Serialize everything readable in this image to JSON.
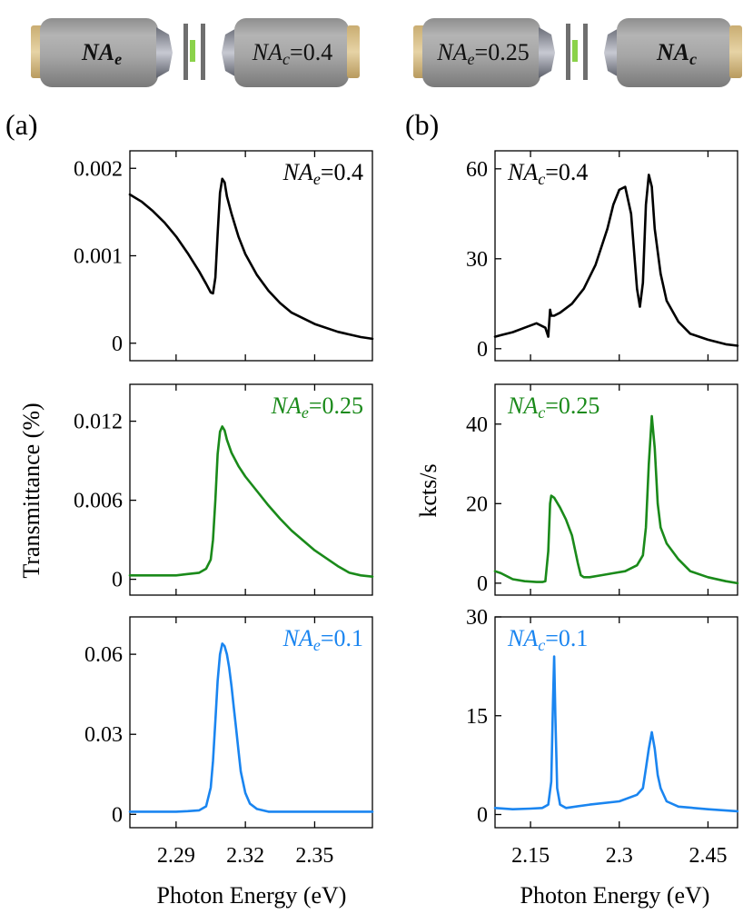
{
  "figure": {
    "panel_a_label": "(a)",
    "panel_b_label": "(b)",
    "shared_xlabel": "Photon Energy (eV)",
    "left_ylabel": "Transmittance (%)",
    "right_ylabel": "kcts/s"
  },
  "illustrations": {
    "a": {
      "left_lens": {
        "sym": "NA",
        "sub": "e",
        "rest": ""
      },
      "right_lens": {
        "sym": "NA",
        "sub": "c",
        "rest": "=0.4"
      }
    },
    "b": {
      "left_lens": {
        "sym": "NA",
        "sub": "e",
        "rest": "=0.25"
      },
      "right_lens": {
        "sym": "NA",
        "sub": "c",
        "rest": ""
      }
    }
  },
  "colors": {
    "black": "#000000",
    "green": "#1a8a1a",
    "blue": "#1a85f0",
    "lens_body": "#a9a9a9",
    "lens_cap": "#d8c08a",
    "sample": "#8bd24a"
  },
  "chart_data": [
    {
      "type": "line",
      "panel": "a",
      "row": 0,
      "annotation": {
        "sym": "NA",
        "sub": "e",
        "rest": "=0.4"
      },
      "xlim": [
        2.27,
        2.375
      ],
      "ylim": [
        -0.0002,
        0.0022
      ],
      "xticks": [
        2.29,
        2.32,
        2.35
      ],
      "xticklabels": [
        "",
        "",
        ""
      ],
      "yticks": [
        0,
        0.001,
        0.002
      ],
      "yticklabels": [
        "0",
        "0.001",
        "0.002"
      ],
      "series": [
        {
          "color": "black",
          "x": [
            2.27,
            2.275,
            2.28,
            2.285,
            2.29,
            2.295,
            2.3,
            2.303,
            2.305,
            2.306,
            2.307,
            2.308,
            2.309,
            2.31,
            2.311,
            2.312,
            2.314,
            2.317,
            2.32,
            2.325,
            2.33,
            2.335,
            2.34,
            2.35,
            2.36,
            2.37,
            2.375
          ],
          "y": [
            0.0017,
            0.00162,
            0.00151,
            0.00138,
            0.00122,
            0.00103,
            0.00082,
            0.00068,
            0.00058,
            0.00057,
            0.00075,
            0.00125,
            0.00172,
            0.00188,
            0.00184,
            0.00168,
            0.00148,
            0.00122,
            0.00102,
            0.00078,
            0.0006,
            0.00046,
            0.00035,
            0.00022,
            0.00013,
            7e-05,
            5e-05
          ]
        }
      ]
    },
    {
      "type": "line",
      "panel": "a",
      "row": 1,
      "annotation": {
        "sym": "NA",
        "sub": "e",
        "rest": "=0.25"
      },
      "xlim": [
        2.27,
        2.375
      ],
      "ylim": [
        -0.0012,
        0.0148
      ],
      "xticks": [
        2.29,
        2.32,
        2.35
      ],
      "xticklabels": [
        "",
        "",
        ""
      ],
      "yticks": [
        0,
        0.006,
        0.012
      ],
      "yticklabels": [
        "0",
        "0.006",
        "0.012"
      ],
      "series": [
        {
          "color": "green",
          "x": [
            2.27,
            2.28,
            2.29,
            2.295,
            2.3,
            2.303,
            2.305,
            2.306,
            2.307,
            2.308,
            2.309,
            2.31,
            2.311,
            2.312,
            2.314,
            2.317,
            2.32,
            2.325,
            2.33,
            2.335,
            2.34,
            2.35,
            2.36,
            2.365,
            2.37,
            2.375
          ],
          "y": [
            0.0003,
            0.0003,
            0.0003,
            0.0004,
            0.0005,
            0.0008,
            0.0015,
            0.003,
            0.006,
            0.0095,
            0.0112,
            0.0116,
            0.0113,
            0.0106,
            0.0096,
            0.0086,
            0.0078,
            0.0067,
            0.0056,
            0.0046,
            0.0037,
            0.0022,
            0.001,
            0.0005,
            0.0003,
            0.0002
          ]
        }
      ]
    },
    {
      "type": "line",
      "panel": "a",
      "row": 2,
      "annotation": {
        "sym": "NA",
        "sub": "e",
        "rest": "=0.1"
      },
      "xlim": [
        2.27,
        2.375
      ],
      "ylim": [
        -0.005,
        0.074
      ],
      "xticks": [
        2.29,
        2.32,
        2.35
      ],
      "xticklabels": [
        "2.29",
        "2.32",
        "2.35"
      ],
      "yticks": [
        0,
        0.03,
        0.06
      ],
      "yticklabels": [
        "0",
        "0.03",
        "0.06"
      ],
      "series": [
        {
          "color": "blue",
          "x": [
            2.27,
            2.28,
            2.29,
            2.295,
            2.3,
            2.303,
            2.305,
            2.306,
            2.307,
            2.308,
            2.309,
            2.31,
            2.311,
            2.312,
            2.313,
            2.314,
            2.315,
            2.316,
            2.317,
            2.318,
            2.32,
            2.322,
            2.325,
            2.33,
            2.34,
            2.35,
            2.36,
            2.375
          ],
          "y": [
            0.001,
            0.001,
            0.001,
            0.0012,
            0.0015,
            0.003,
            0.01,
            0.02,
            0.035,
            0.05,
            0.06,
            0.064,
            0.063,
            0.06,
            0.055,
            0.048,
            0.04,
            0.032,
            0.024,
            0.016,
            0.008,
            0.004,
            0.002,
            0.001,
            0.001,
            0.001,
            0.001,
            0.001
          ]
        }
      ]
    },
    {
      "type": "line",
      "panel": "b",
      "row": 0,
      "annotation": {
        "sym": "NA",
        "sub": "c",
        "rest": "=0.4"
      },
      "xlim": [
        2.09,
        2.5
      ],
      "ylim": [
        -4,
        66
      ],
      "xticks": [
        2.15,
        2.3,
        2.45
      ],
      "xticklabels": [
        "",
        "",
        ""
      ],
      "yticks": [
        0,
        30,
        60
      ],
      "yticklabels": [
        "0",
        "30",
        "60"
      ],
      "series": [
        {
          "color": "black",
          "x": [
            2.09,
            2.1,
            2.12,
            2.14,
            2.16,
            2.175,
            2.18,
            2.183,
            2.185,
            2.19,
            2.2,
            2.22,
            2.24,
            2.26,
            2.28,
            2.29,
            2.3,
            2.31,
            2.32,
            2.33,
            2.335,
            2.34,
            2.345,
            2.35,
            2.355,
            2.36,
            2.37,
            2.38,
            2.4,
            2.42,
            2.45,
            2.48,
            2.5
          ],
          "y": [
            4,
            4.5,
            5.5,
            7,
            8.5,
            7,
            4,
            13,
            11,
            11,
            12,
            15,
            20,
            28,
            40,
            48,
            53,
            54,
            45,
            20,
            14,
            22,
            48,
            58,
            54,
            40,
            25,
            16,
            9,
            5,
            3,
            1.5,
            1
          ]
        }
      ]
    },
    {
      "type": "line",
      "panel": "b",
      "row": 1,
      "annotation": {
        "sym": "NA",
        "sub": "c",
        "rest": "=0.25"
      },
      "xlim": [
        2.09,
        2.5
      ],
      "ylim": [
        -3,
        50
      ],
      "xticks": [
        2.15,
        2.3,
        2.45
      ],
      "xticklabels": [
        "",
        "",
        ""
      ],
      "yticks": [
        0,
        20,
        40
      ],
      "yticklabels": [
        "0",
        "20",
        "40"
      ],
      "series": [
        {
          "color": "green",
          "x": [
            2.09,
            2.1,
            2.12,
            2.14,
            2.16,
            2.17,
            2.175,
            2.18,
            2.183,
            2.185,
            2.19,
            2.2,
            2.21,
            2.22,
            2.23,
            2.235,
            2.24,
            2.25,
            2.27,
            2.29,
            2.31,
            2.33,
            2.34,
            2.345,
            2.35,
            2.355,
            2.36,
            2.365,
            2.37,
            2.38,
            2.4,
            2.42,
            2.45,
            2.48,
            2.5
          ],
          "y": [
            3,
            2.5,
            1,
            0.5,
            0.3,
            0.3,
            0.5,
            8,
            20,
            22,
            21.5,
            19,
            16,
            12,
            5,
            2,
            1.5,
            1.5,
            2,
            2.5,
            3,
            4.5,
            7,
            14,
            30,
            42,
            34,
            20,
            14,
            10,
            6,
            3,
            1.5,
            0.5,
            0
          ]
        }
      ]
    },
    {
      "type": "line",
      "panel": "b",
      "row": 2,
      "annotation": {
        "sym": "NA",
        "sub": "c",
        "rest": "=0.1"
      },
      "xlim": [
        2.09,
        2.5
      ],
      "ylim": [
        -2,
        30
      ],
      "xticks": [
        2.15,
        2.3,
        2.45
      ],
      "xticklabels": [
        "2.15",
        "2.3",
        "2.45"
      ],
      "yticks": [
        0,
        15,
        30
      ],
      "yticklabels": [
        "0",
        "15",
        "30"
      ],
      "series": [
        {
          "color": "blue",
          "x": [
            2.09,
            2.12,
            2.15,
            2.17,
            2.18,
            2.185,
            2.188,
            2.19,
            2.192,
            2.195,
            2.2,
            2.21,
            2.25,
            2.3,
            2.33,
            2.34,
            2.345,
            2.35,
            2.355,
            2.36,
            2.365,
            2.37,
            2.38,
            2.4,
            2.45,
            2.5
          ],
          "y": [
            1,
            0.8,
            0.9,
            1,
            1.5,
            5,
            17,
            24,
            15,
            4,
            1.5,
            1,
            1.5,
            2,
            3,
            4,
            7,
            10,
            12.5,
            10,
            6,
            4,
            2,
            1.2,
            0.8,
            0.5
          ]
        }
      ]
    }
  ]
}
